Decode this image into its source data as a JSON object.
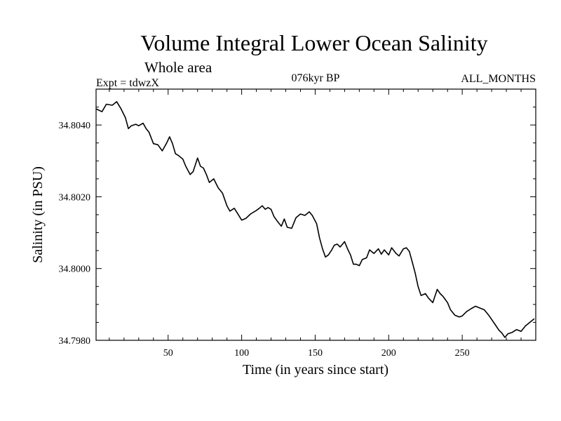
{
  "chart_data": {
    "type": "line",
    "title": "Volume Integral Lower Ocean Salinity",
    "subtitle": "Whole area",
    "header_left": "Expt = tdwzX",
    "header_center": "076kyr BP",
    "header_right": "ALL_MONTHS",
    "xlabel": "Time (in years since start)",
    "ylabel": "Salinity (in PSU)",
    "xlim": [
      1,
      300
    ],
    "ylim": [
      34.798,
      34.805
    ],
    "xticks": [
      50,
      100,
      150,
      200,
      250
    ],
    "xtick_labels": [
      "50",
      "100",
      "150",
      "200",
      "250"
    ],
    "yticks": [
      34.798,
      34.8,
      34.802,
      34.804
    ],
    "ytick_labels": [
      "34.7980",
      "34.8000",
      "34.8020",
      "34.8040"
    ],
    "grid": false,
    "series": [
      {
        "color": "#000000",
        "x": [
          1,
          5,
          8,
          12,
          15,
          18,
          21,
          23,
          25,
          28,
          30,
          33,
          35,
          37,
          40,
          43,
          46,
          49,
          51,
          53,
          55,
          57,
          60,
          62,
          65,
          67,
          70,
          72,
          74,
          76,
          78,
          81,
          84,
          87,
          90,
          92,
          95,
          97,
          100,
          103,
          106,
          110,
          112,
          114,
          116,
          118,
          120,
          122,
          125,
          127,
          129,
          131,
          134,
          137,
          140,
          143,
          146,
          148,
          151,
          153,
          155,
          157,
          159,
          161,
          163,
          165,
          167,
          170,
          172,
          174,
          176,
          178,
          180,
          182,
          185,
          187,
          190,
          193,
          195,
          197,
          200,
          202,
          205,
          207,
          210,
          212,
          214,
          216,
          218,
          220,
          222,
          225,
          227,
          230,
          233,
          235,
          237,
          240,
          242,
          245,
          248,
          250,
          253,
          256,
          259,
          262,
          265,
          268,
          270,
          273,
          275,
          277,
          279,
          281,
          284,
          287,
          290,
          293,
          296,
          299
        ],
        "y": [
          34.80445,
          34.80437,
          34.80458,
          34.80455,
          34.80465,
          34.80445,
          34.8042,
          34.8039,
          34.80398,
          34.80402,
          34.80398,
          34.80405,
          34.8039,
          34.8038,
          34.80348,
          34.80345,
          34.80328,
          34.8035,
          34.80367,
          34.80348,
          34.8032,
          34.80315,
          34.80305,
          34.80285,
          34.80262,
          34.8027,
          34.80308,
          34.80285,
          34.8028,
          34.80262,
          34.8024,
          34.8025,
          34.80225,
          34.8021,
          34.80175,
          34.8016,
          34.80168,
          34.80155,
          34.80135,
          34.8014,
          34.80152,
          34.80162,
          34.80168,
          34.80175,
          34.80165,
          34.8017,
          34.80165,
          34.80145,
          34.80128,
          34.80118,
          34.80138,
          34.80115,
          34.80112,
          34.80142,
          34.80152,
          34.80148,
          34.80158,
          34.80148,
          34.80125,
          34.80085,
          34.80055,
          34.80032,
          34.80038,
          34.8005,
          34.80065,
          34.80068,
          34.8006,
          34.80075,
          34.80055,
          34.80038,
          34.80012,
          34.80012,
          34.80008,
          34.80025,
          34.8003,
          34.80052,
          34.80042,
          34.80055,
          34.8004,
          34.80052,
          34.80038,
          34.80058,
          34.80042,
          34.80035,
          34.80055,
          34.80058,
          34.80048,
          34.80018,
          34.79988,
          34.7995,
          34.79925,
          34.7993,
          34.79918,
          34.79905,
          34.79942,
          34.7993,
          34.79922,
          34.79905,
          34.79885,
          34.7987,
          34.79865,
          34.79868,
          34.7988,
          34.79888,
          34.79895,
          34.7989,
          34.79885,
          34.7987,
          34.79858,
          34.7984,
          34.79828,
          34.7982,
          34.79808,
          34.79818,
          34.79822,
          34.7983,
          34.79825,
          34.7984,
          34.7985,
          34.7986
        ]
      }
    ]
  }
}
